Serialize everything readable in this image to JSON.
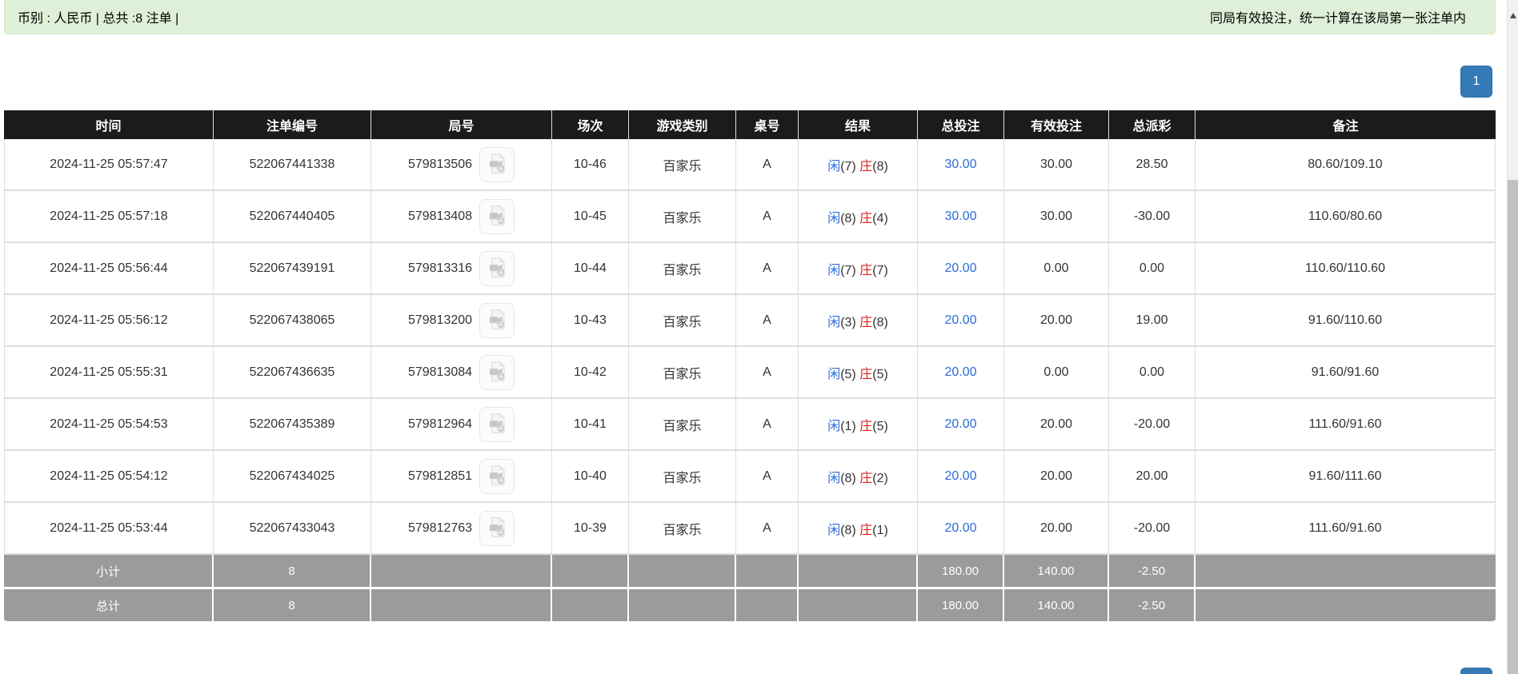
{
  "info_bar": {
    "left_text": "币别 : 人民币 | 总共 :8 注单 |",
    "right_notice": "同局有效投注，统一计算在该局第一张注单内"
  },
  "pagination": {
    "current_page": "1"
  },
  "icons": {
    "video_replay": "video-replay-icon",
    "scroll_up": "scroll-up-arrow-icon"
  },
  "colors": {
    "header_bg": "#1b1b1b",
    "alert_bg": "#dff0d8",
    "alert_text": "#3c763d",
    "notice_red": "#ff0000",
    "link_blue": "#2e6cd9",
    "banker_red": "#dd2222",
    "negative_red": "#ff0000",
    "summary_bg": "#9b9b9b",
    "pagination_blue": "#337ab7"
  },
  "table": {
    "columns": [
      "时间",
      "注单编号",
      "局号",
      "场次",
      "游戏类别",
      "桌号",
      "结果",
      "总投注",
      "有效投注",
      "总派彩",
      "备注"
    ],
    "rows": [
      {
        "time": "2024-11-25 05:57:47",
        "bet_id": "522067441338",
        "round_id": "579813506",
        "session": "10-46",
        "game": "百家乐",
        "table_no": "A",
        "player": "闲",
        "player_pts": "(7)",
        "banker": "庄",
        "banker_pts": "(8)",
        "total_bet": "30.00",
        "valid_bet": "30.00",
        "payout": "28.50",
        "remark": "80.60/109.10"
      },
      {
        "time": "2024-11-25 05:57:18",
        "bet_id": "522067440405",
        "round_id": "579813408",
        "session": "10-45",
        "game": "百家乐",
        "table_no": "A",
        "player": "闲",
        "player_pts": "(8)",
        "banker": "庄",
        "banker_pts": "(4)",
        "total_bet": "30.00",
        "valid_bet": "30.00",
        "payout": "-30.00",
        "remark": "110.60/80.60"
      },
      {
        "time": "2024-11-25 05:56:44",
        "bet_id": "522067439191",
        "round_id": "579813316",
        "session": "10-44",
        "game": "百家乐",
        "table_no": "A",
        "player": "闲",
        "player_pts": "(7)",
        "banker": "庄",
        "banker_pts": "(7)",
        "total_bet": "20.00",
        "valid_bet": "0.00",
        "payout": "0.00",
        "remark": "110.60/110.60"
      },
      {
        "time": "2024-11-25 05:56:12",
        "bet_id": "522067438065",
        "round_id": "579813200",
        "session": "10-43",
        "game": "百家乐",
        "table_no": "A",
        "player": "闲",
        "player_pts": "(3)",
        "banker": "庄",
        "banker_pts": "(8)",
        "total_bet": "20.00",
        "valid_bet": "20.00",
        "payout": "19.00",
        "remark": "91.60/110.60"
      },
      {
        "time": "2024-11-25 05:55:31",
        "bet_id": "522067436635",
        "round_id": "579813084",
        "session": "10-42",
        "game": "百家乐",
        "table_no": "A",
        "player": "闲",
        "player_pts": "(5)",
        "banker": "庄",
        "banker_pts": "(5)",
        "total_bet": "20.00",
        "valid_bet": "0.00",
        "payout": "0.00",
        "remark": "91.60/91.60"
      },
      {
        "time": "2024-11-25 05:54:53",
        "bet_id": "522067435389",
        "round_id": "579812964",
        "session": "10-41",
        "game": "百家乐",
        "table_no": "A",
        "player": "闲",
        "player_pts": "(1)",
        "banker": "庄",
        "banker_pts": "(5)",
        "total_bet": "20.00",
        "valid_bet": "20.00",
        "payout": "-20.00",
        "remark": "111.60/91.60"
      },
      {
        "time": "2024-11-25 05:54:12",
        "bet_id": "522067434025",
        "round_id": "579812851",
        "session": "10-40",
        "game": "百家乐",
        "table_no": "A",
        "player": "闲",
        "player_pts": "(8)",
        "banker": "庄",
        "banker_pts": "(2)",
        "total_bet": "20.00",
        "valid_bet": "20.00",
        "payout": "20.00",
        "remark": "91.60/111.60"
      },
      {
        "time": "2024-11-25 05:53:44",
        "bet_id": "522067433043",
        "round_id": "579812763",
        "session": "10-39",
        "game": "百家乐",
        "table_no": "A",
        "player": "闲",
        "player_pts": "(8)",
        "banker": "庄",
        "banker_pts": "(1)",
        "total_bet": "20.00",
        "valid_bet": "20.00",
        "payout": "-20.00",
        "remark": "111.60/91.60"
      }
    ],
    "summary_rows": [
      {
        "label": "小计",
        "count": "8",
        "total_bet": "180.00",
        "valid_bet": "140.00",
        "payout": "-2.50"
      },
      {
        "label": "总计",
        "count": "8",
        "total_bet": "180.00",
        "valid_bet": "140.00",
        "payout": "-2.50"
      }
    ]
  }
}
